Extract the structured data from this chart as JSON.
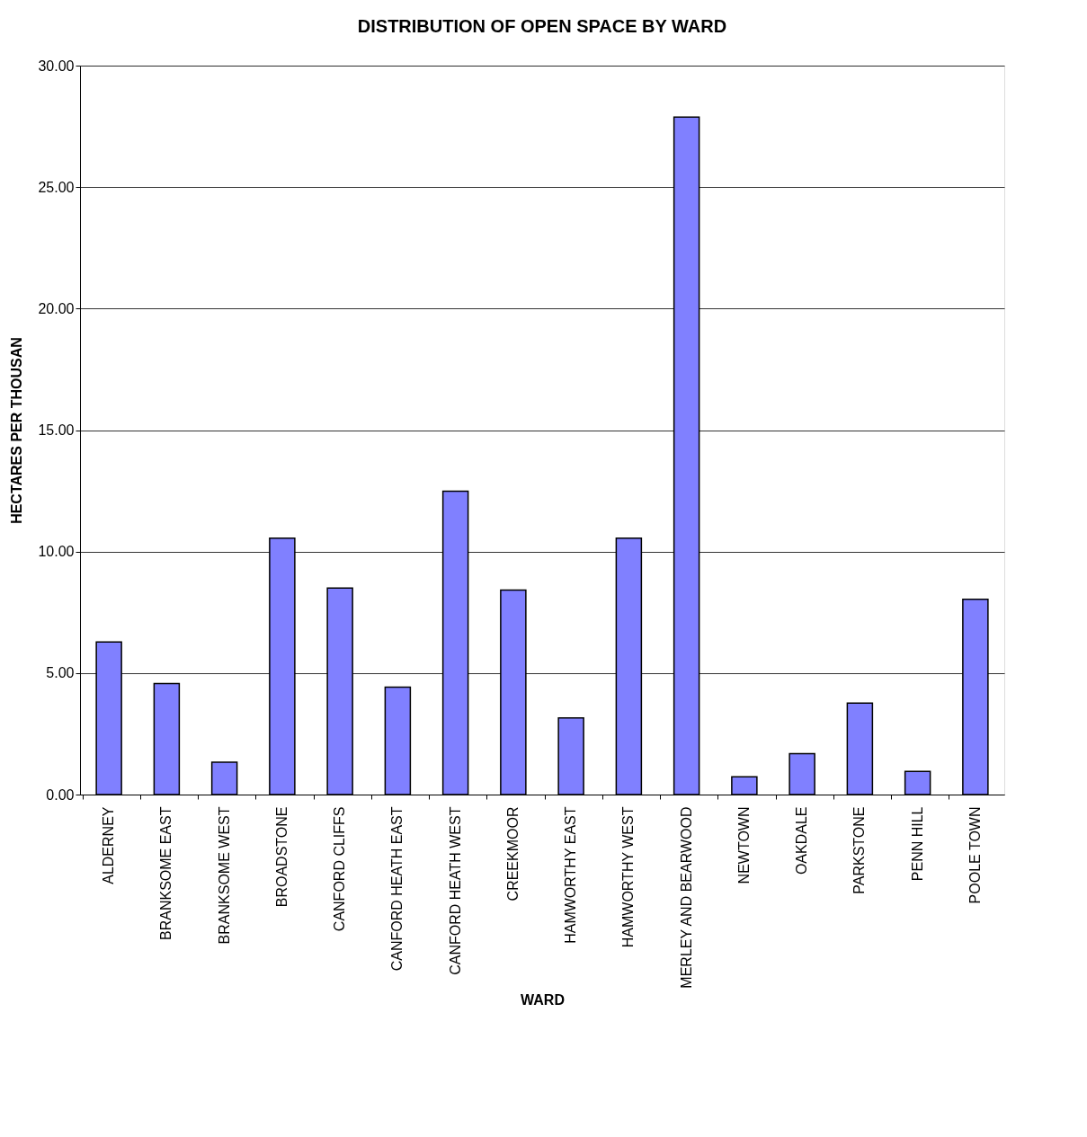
{
  "chart_data": {
    "type": "bar",
    "title": "DISTRIBUTION OF OPEN SPACE BY WARD",
    "xlabel": "WARD",
    "ylabel": "HECTARES PER THOUSAN",
    "categories": [
      "ALDERNEY",
      "BRANKSOME EAST",
      "BRANKSOME WEST",
      "BROADSTONE",
      "CANFORD CLIFFS",
      "CANFORD HEATH EAST",
      "CANFORD HEATH WEST",
      "CREEKMOOR",
      "HAMWORTHY EAST",
      "HAMWORTHY WEST",
      "MERLEY AND BEARWOOD",
      "NEWTOWN",
      "OAKDALE",
      "PARKSTONE",
      "PENN HILL",
      "POOLE TOWN"
    ],
    "values": [
      6.28,
      4.57,
      1.33,
      10.55,
      8.5,
      4.42,
      12.48,
      8.42,
      3.15,
      10.55,
      27.88,
      0.73,
      1.68,
      3.76,
      0.95,
      8.04
    ],
    "color": "#8080ff",
    "ylim": [
      0,
      30
    ],
    "yticks": [
      {
        "value": 0,
        "label": "0.00"
      },
      {
        "value": 5,
        "label": "5.00"
      },
      {
        "value": 10,
        "label": "10.00"
      },
      {
        "value": 15,
        "label": "15.00"
      },
      {
        "value": 20,
        "label": "20.00"
      },
      {
        "value": 25,
        "label": "25.00"
      },
      {
        "value": 30,
        "label": "30.00"
      }
    ],
    "grid": "y"
  }
}
